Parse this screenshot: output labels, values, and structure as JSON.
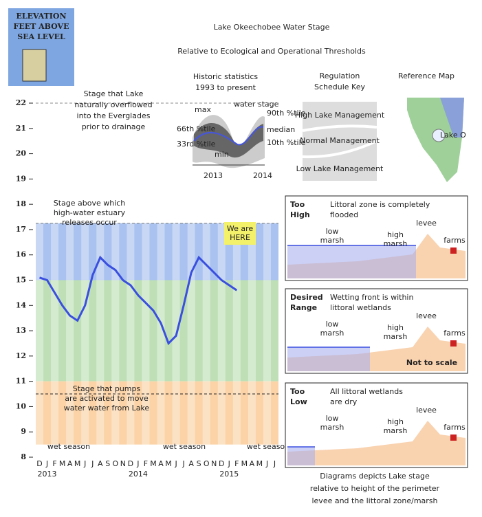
{
  "logo": {
    "lines": [
      "ELEVATION",
      "FEET ABOVE",
      "SEA LEVEL"
    ]
  },
  "header": {
    "title": "Lake Okeechobee Water Stage",
    "subtitle": "Relative to Ecological and Operational Thresholds"
  },
  "historic": {
    "title": "Historic statistics",
    "subtitle": "1993 to present",
    "labels": [
      "max",
      "water stage",
      "90th %tile",
      "66th %tile",
      "median",
      "33rd %tile",
      "10th %tile",
      "min"
    ],
    "years": [
      "2013",
      "2014"
    ]
  },
  "regulation": {
    "title": [
      "Regulation",
      "Schedule Key"
    ],
    "zones": [
      "High Lake Management",
      "Normal Management",
      "Low Lake Management"
    ]
  },
  "reference_map": {
    "title": "Reference Map",
    "label": "Lake O"
  },
  "chart_data": {
    "type": "line",
    "categories": [
      "D",
      "J",
      "F",
      "M",
      "A",
      "M",
      "J",
      "J",
      "A",
      "S",
      "O",
      "N",
      "D",
      "J",
      "F",
      "M",
      "A",
      "M",
      "J",
      "J",
      "A",
      "S",
      "O",
      "N",
      "D",
      "J",
      "F",
      "M",
      "A",
      "M",
      "J",
      "J"
    ],
    "year_labels": [
      "2013",
      "2014",
      "2015"
    ],
    "series": [
      {
        "name": "water stage",
        "color": "#3a4fe0",
        "values": [
          15.1,
          15.0,
          14.5,
          14.0,
          13.6,
          13.4,
          14.0,
          15.2,
          15.9,
          15.6,
          15.4,
          15.0,
          14.8,
          14.4,
          14.1,
          13.8,
          13.3,
          12.5,
          12.8,
          14.0,
          15.3,
          15.9,
          15.6,
          15.3,
          15.0,
          14.8,
          14.6,
          null,
          null,
          null,
          null,
          null
        ]
      }
    ],
    "ylim": [
      8,
      22
    ],
    "yticks": [
      8,
      9,
      10,
      11,
      12,
      13,
      14,
      15,
      16,
      17,
      18,
      19,
      20,
      21,
      22
    ],
    "zones": [
      {
        "from": 15,
        "to": 17.25,
        "color": "#a9c2ef"
      },
      {
        "from": 11,
        "to": 15,
        "color": "#bfe0b7"
      },
      {
        "from": 8.5,
        "to": 11,
        "color": "#fbd3a6"
      }
    ],
    "reference_lines": [
      {
        "value": 22,
        "color": "#888"
      },
      {
        "value": 17.25,
        "color": "#777"
      },
      {
        "value": 10.5,
        "color": "#222"
      }
    ],
    "annotations": {
      "overflow": [
        "Stage that Lake",
        "naturally overflowed",
        "into the Everglades",
        "prior to drainage"
      ],
      "releases": [
        "Stage above which",
        "high-water estuary",
        "releases occur"
      ],
      "here": [
        "We are",
        "HERE"
      ],
      "pumps": [
        "Stage that pumps",
        "are activated to move",
        "water water from Lake"
      ],
      "wet_season": [
        "wet season",
        "wet season",
        "wet season"
      ]
    }
  },
  "panels": [
    {
      "label": [
        "Too",
        "High"
      ],
      "text": [
        "Littoral zone is completely",
        "flooded"
      ],
      "low": [
        "low",
        "marsh"
      ],
      "high": [
        "high",
        "marsh"
      ],
      "levee": "levee",
      "farms": "farms"
    },
    {
      "label": [
        "Desired",
        "Range"
      ],
      "text": [
        "Wetting front is within",
        "littoral wetlands"
      ],
      "low": [
        "low",
        "marsh"
      ],
      "high": [
        "high",
        "marsh"
      ],
      "levee": "levee",
      "farms": "farms",
      "note": "Not to scale"
    },
    {
      "label": [
        "Too",
        "Low"
      ],
      "text": [
        "All littoral wetlands",
        "are dry"
      ],
      "low": [
        "low",
        "marsh"
      ],
      "high": [
        "high",
        "marsh"
      ],
      "levee": "levee",
      "farms": "farms"
    }
  ],
  "footer": [
    "Diagrams depicts Lake stage",
    "relative to height of the perimeter",
    "levee and the littoral zone/marsh"
  ]
}
